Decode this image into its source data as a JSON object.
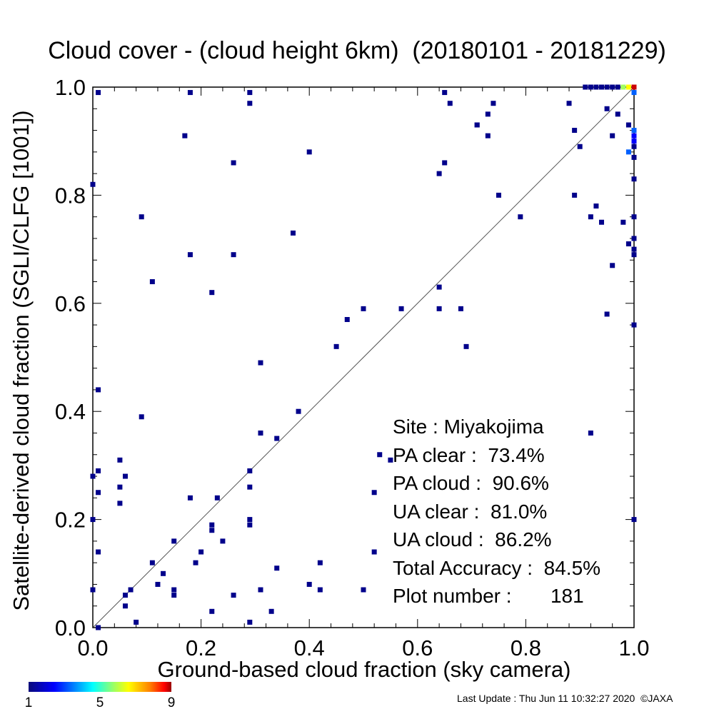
{
  "chart_data": {
    "type": "scatter",
    "title": "Cloud cover - (cloud height 6km)  (20180101 - 20181229)",
    "xlabel": "Ground-based cloud fraction (sky camera)",
    "ylabel": "Satellite-derived cloud fraction (SGLI/CLFG [1001])",
    "xlim": [
      0.0,
      1.0
    ],
    "ylim": [
      0.0,
      1.0
    ],
    "x_ticks": [
      "0.0",
      "0.2",
      "0.4",
      "0.6",
      "0.8",
      "1.0"
    ],
    "y_ticks": [
      "0.0",
      "0.2",
      "0.4",
      "0.6",
      "0.8",
      "1.0"
    ],
    "grid": false,
    "reference_line": "y = x",
    "colorbar": {
      "min": 1,
      "max": 9,
      "ticks": [
        "1",
        "5",
        "9"
      ]
    },
    "points": [
      [
        0.0,
        0.82
      ],
      [
        0.0,
        0.28
      ],
      [
        0.0,
        0.2
      ],
      [
        0.0,
        0.07
      ],
      [
        0.01,
        0.99
      ],
      [
        0.01,
        0.44
      ],
      [
        0.01,
        0.29
      ],
      [
        0.01,
        0.25
      ],
      [
        0.01,
        0.14
      ],
      [
        0.01,
        0.0
      ],
      [
        0.05,
        0.31
      ],
      [
        0.05,
        0.26
      ],
      [
        0.05,
        0.23
      ],
      [
        0.06,
        0.28
      ],
      [
        0.06,
        0.06
      ],
      [
        0.06,
        0.04
      ],
      [
        0.07,
        0.07
      ],
      [
        0.08,
        0.01
      ],
      [
        0.09,
        0.76
      ],
      [
        0.09,
        0.39
      ],
      [
        0.11,
        0.64
      ],
      [
        0.11,
        0.12
      ],
      [
        0.12,
        0.08
      ],
      [
        0.13,
        0.1
      ],
      [
        0.15,
        0.16
      ],
      [
        0.15,
        0.07
      ],
      [
        0.15,
        0.06
      ],
      [
        0.17,
        0.91
      ],
      [
        0.18,
        0.99
      ],
      [
        0.18,
        0.69
      ],
      [
        0.18,
        0.24
      ],
      [
        0.19,
        0.12
      ],
      [
        0.2,
        0.14
      ],
      [
        0.22,
        0.62
      ],
      [
        0.22,
        0.19
      ],
      [
        0.22,
        0.18
      ],
      [
        0.22,
        0.03
      ],
      [
        0.23,
        0.24
      ],
      [
        0.24,
        0.16
      ],
      [
        0.26,
        0.86
      ],
      [
        0.26,
        0.69
      ],
      [
        0.26,
        0.06
      ],
      [
        0.29,
        0.99
      ],
      [
        0.29,
        0.97
      ],
      [
        0.29,
        0.29
      ],
      [
        0.29,
        0.26
      ],
      [
        0.29,
        0.2
      ],
      [
        0.29,
        0.19
      ],
      [
        0.29,
        0.01
      ],
      [
        0.31,
        0.49
      ],
      [
        0.31,
        0.36
      ],
      [
        0.31,
        0.07
      ],
      [
        0.33,
        0.03
      ],
      [
        0.34,
        0.35
      ],
      [
        0.34,
        0.11
      ],
      [
        0.37,
        0.73
      ],
      [
        0.38,
        0.4
      ],
      [
        0.4,
        0.88
      ],
      [
        0.4,
        0.08
      ],
      [
        0.42,
        0.12
      ],
      [
        0.42,
        0.07
      ],
      [
        0.45,
        0.52
      ],
      [
        0.47,
        0.57
      ],
      [
        0.5,
        0.59
      ],
      [
        0.5,
        0.07
      ],
      [
        0.52,
        0.25
      ],
      [
        0.52,
        0.14
      ],
      [
        0.53,
        0.32
      ],
      [
        0.55,
        0.31
      ],
      [
        0.57,
        0.59
      ],
      [
        0.64,
        0.84
      ],
      [
        0.64,
        0.63
      ],
      [
        0.64,
        0.59
      ],
      [
        0.65,
        0.99
      ],
      [
        0.65,
        0.86
      ],
      [
        0.66,
        0.97
      ],
      [
        0.68,
        0.59
      ],
      [
        0.69,
        0.52
      ],
      [
        0.71,
        0.93
      ],
      [
        0.71,
        0.93
      ],
      [
        0.73,
        0.95
      ],
      [
        0.73,
        0.91
      ],
      [
        0.74,
        0.97
      ],
      [
        0.75,
        0.8
      ],
      [
        0.79,
        0.76
      ],
      [
        0.88,
        0.97
      ],
      [
        0.89,
        0.92
      ],
      [
        0.89,
        0.8
      ],
      [
        0.9,
        0.89
      ],
      [
        0.92,
        0.76
      ],
      [
        0.92,
        0.36
      ],
      [
        0.93,
        0.78
      ],
      [
        0.94,
        0.75
      ],
      [
        0.95,
        0.96
      ],
      [
        0.95,
        0.58
      ],
      [
        0.96,
        0.91
      ],
      [
        0.96,
        0.67
      ],
      [
        0.97,
        0.95
      ],
      [
        0.98,
        0.75
      ],
      [
        0.99,
        0.93
      ],
      [
        0.99,
        0.71
      ],
      [
        1.0,
        0.89
      ],
      [
        1.0,
        0.87
      ],
      [
        1.0,
        0.83
      ],
      [
        1.0,
        0.76
      ],
      [
        1.0,
        0.72
      ],
      [
        1.0,
        0.7
      ],
      [
        1.0,
        0.69
      ],
      [
        1.0,
        0.56
      ],
      [
        1.0,
        0.2
      ],
      [
        0.91,
        1.0
      ],
      [
        0.92,
        1.0
      ],
      [
        0.93,
        1.0
      ],
      [
        0.94,
        1.0
      ],
      [
        0.95,
        1.0
      ],
      [
        0.96,
        1.0
      ],
      [
        0.97,
        1.0
      ]
    ],
    "dense_cells": [
      {
        "x": 0.98,
        "y": 1.0,
        "level": 6
      },
      {
        "x": 0.99,
        "y": 1.0,
        "level": 7
      },
      {
        "x": 1.0,
        "y": 1.0,
        "level": 9
      },
      {
        "x": 0.99,
        "y": 0.88,
        "level": 3
      },
      {
        "x": 1.0,
        "y": 0.92,
        "level": 3
      },
      {
        "x": 1.0,
        "y": 0.91,
        "level": 2
      },
      {
        "x": 1.0,
        "y": 0.9,
        "level": 2
      },
      {
        "x": 1.0,
        "y": 0.99,
        "level": 3
      }
    ]
  },
  "stats": {
    "site": "Site : Miyakojima",
    "pa_clear": "PA clear :  73.4%",
    "pa_cloud": "PA cloud :  90.6%",
    "ua_clear": "UA clear :  81.0%",
    "ua_cloud": "UA cloud :  86.2%",
    "total_accuracy": "Total Accuracy :  84.5%",
    "plot_number": "Plot number :       181"
  },
  "footer": "Last Update : Thu Jun 11 10:32:27 2020  ©JAXA"
}
